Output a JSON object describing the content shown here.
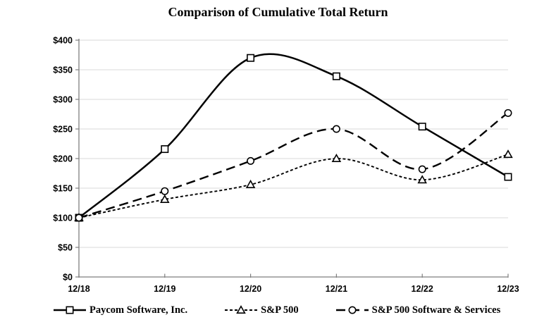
{
  "chart_data": {
    "type": "line",
    "title": "Comparison of Cumulative Total Return",
    "categories": [
      "12/18",
      "12/19",
      "12/20",
      "12/21",
      "12/22",
      "12/23"
    ],
    "series": [
      {
        "name": "Paycom Software, Inc.",
        "values": [
          100,
          216,
          370,
          339,
          254,
          169
        ],
        "line_style": "solid",
        "marker": "square"
      },
      {
        "name": "S&P 500",
        "values": [
          100,
          131,
          156,
          200,
          164,
          207
        ],
        "line_style": "dotted",
        "marker": "triangle"
      },
      {
        "name": "S&P 500 Software & Services",
        "values": [
          100,
          145,
          196,
          250,
          182,
          277
        ],
        "line_style": "long-dash",
        "marker": "circle"
      }
    ],
    "xlabel": "",
    "ylabel": "",
    "ylim": [
      0,
      400
    ],
    "y_step": 50,
    "y_tick_labels": [
      "$0",
      "$50",
      "$100",
      "$150",
      "$200",
      "$250",
      "$300",
      "$350",
      "$400"
    ],
    "grid": "horizontal",
    "legend_position": "bottom",
    "smoothed_lines": true,
    "colors": {
      "series_line": "#000000",
      "marker_fill": "#ffffff",
      "gridline": "#d9d9d9",
      "axis": "#7f7f7f",
      "background": "#ffffff",
      "text": "#000000"
    }
  }
}
